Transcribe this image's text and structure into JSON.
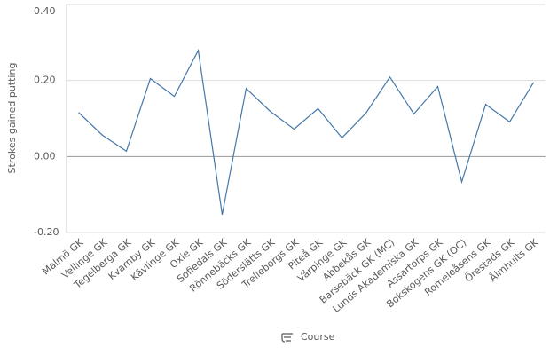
{
  "chart_data": {
    "type": "line",
    "y_label": "Strokes gained putting",
    "x_label": "Course",
    "categories": [
      "Malmö GK",
      "Vellinge GK",
      "Tegelberga GK",
      "Kvarnby GK",
      "Kävlinge GK",
      "Oxie GK",
      "Sofiedals GK",
      "Rönnebäcks GK",
      "Söderslätts GK",
      "Trelleborgs GK",
      "Piteå GK",
      "Vårpinge GK",
      "Abbekås GK",
      "Barsebäck GK (MC)",
      "Lunds Akademiska GK",
      "Assartorps GK",
      "Bokskogens GK (OC)",
      "Romeleåsens GK",
      "Örestads GK",
      "Ålmhults GK"
    ],
    "values": [
      0.116,
      0.056,
      0.014,
      0.205,
      0.158,
      0.279,
      -0.153,
      0.179,
      0.119,
      0.072,
      0.126,
      0.049,
      0.114,
      0.209,
      0.112,
      0.184,
      -0.067,
      0.137,
      0.091,
      0.195
    ],
    "color": "#4477aa",
    "ylim": [
      -0.2,
      0.4
    ],
    "yticks": [
      {
        "value": -0.2,
        "label": "-0.20"
      },
      {
        "value": 0,
        "label": "0.00"
      },
      {
        "value": 0.2,
        "label": "0.20"
      },
      {
        "value": 0.4,
        "label": "0.40"
      }
    ],
    "grid": true
  }
}
